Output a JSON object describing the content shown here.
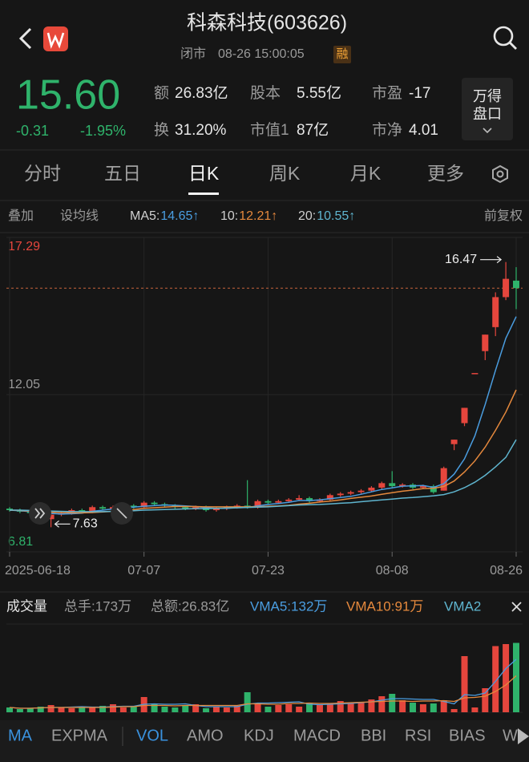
{
  "header": {
    "title": "科森科技(603626)",
    "status": "闭市",
    "time": "08-26 15:00:05",
    "badge": "融"
  },
  "quote": {
    "price": "15.60",
    "change": "-0.31",
    "change_pct": "-1.95%",
    "stats": [
      {
        "label": "额",
        "value": "26.83亿"
      },
      {
        "label": "股本",
        "value": "5.55亿"
      },
      {
        "label": "市盈",
        "value": "-17"
      },
      {
        "label": "换",
        "value": "31.20%"
      },
      {
        "label": "市值1",
        "value": "87亿"
      },
      {
        "label": "市净",
        "value": "4.01"
      }
    ],
    "button": [
      "万得",
      "盘口"
    ]
  },
  "tabs": [
    "分时",
    "五日",
    "日K",
    "周K",
    "月K",
    "更多"
  ],
  "toolbar": {
    "overlay": "叠加",
    "ma_setting": "设均线",
    "adjust": "前复权"
  },
  "chart_data": [
    {
      "type": "candlestick",
      "categories": [
        "2025-06-18",
        null,
        null,
        null,
        null,
        null,
        null,
        null,
        null,
        null,
        null,
        null,
        null,
        "07-07",
        null,
        null,
        null,
        null,
        null,
        null,
        null,
        null,
        null,
        null,
        null,
        "07-23",
        null,
        null,
        null,
        null,
        null,
        null,
        null,
        null,
        null,
        null,
        null,
        "08-08",
        null,
        null,
        null,
        null,
        null,
        null,
        null,
        null,
        null,
        null,
        null,
        "08-26"
      ],
      "open": [
        8.25,
        8.2,
        8.15,
        8.1,
        7.9,
        8.05,
        8.1,
        8.2,
        8.15,
        8.3,
        8.25,
        8.3,
        8.35,
        8.3,
        8.45,
        8.4,
        8.35,
        8.3,
        8.25,
        8.3,
        8.2,
        8.25,
        8.3,
        8.35,
        8.3,
        8.5,
        8.45,
        8.5,
        8.55,
        8.6,
        8.5,
        8.55,
        8.7,
        8.75,
        8.8,
        8.85,
        8.95,
        9.1,
        9.0,
        9.05,
        8.95,
        9.0,
        8.85,
        10.4,
        11.1,
        12.77,
        13.5,
        14.3,
        15.3,
        15.85
      ],
      "high": [
        8.3,
        8.25,
        8.2,
        8.15,
        8.1,
        8.15,
        8.25,
        8.25,
        8.35,
        8.35,
        8.35,
        8.4,
        8.4,
        8.5,
        8.5,
        8.45,
        8.4,
        8.35,
        8.35,
        8.35,
        8.3,
        8.35,
        8.4,
        9.2,
        8.55,
        8.55,
        8.55,
        8.6,
        8.7,
        8.65,
        8.6,
        8.75,
        8.8,
        8.85,
        8.9,
        9.0,
        9.15,
        9.5,
        9.1,
        9.1,
        9.05,
        9.05,
        9.65,
        10.55,
        11.61,
        12.77,
        14.05,
        15.46,
        16.47,
        16.3
      ],
      "low": [
        8.15,
        8.1,
        8.05,
        7.9,
        7.63,
        8.0,
        8.05,
        8.1,
        8.1,
        8.2,
        8.2,
        8.25,
        8.25,
        8.25,
        8.35,
        8.3,
        8.25,
        8.2,
        8.2,
        8.15,
        8.15,
        8.2,
        8.25,
        8.25,
        8.25,
        8.4,
        8.4,
        8.45,
        8.5,
        8.45,
        8.45,
        8.5,
        8.65,
        8.7,
        8.75,
        8.8,
        8.9,
        8.95,
        8.95,
        8.9,
        8.9,
        8.75,
        8.85,
        10.2,
        11.0,
        12.77,
        13.2,
        14.0,
        15.2,
        14.9
      ],
      "close": [
        8.2,
        8.15,
        8.1,
        7.95,
        8.05,
        8.1,
        8.2,
        8.15,
        8.3,
        8.25,
        8.3,
        8.35,
        8.3,
        8.45,
        8.4,
        8.35,
        8.3,
        8.25,
        8.3,
        8.2,
        8.25,
        8.3,
        8.35,
        8.3,
        8.5,
        8.45,
        8.5,
        8.55,
        8.6,
        8.5,
        8.55,
        8.7,
        8.75,
        8.8,
        8.85,
        8.95,
        9.1,
        9.0,
        9.05,
        8.95,
        9.0,
        8.8,
        9.6,
        10.55,
        11.61,
        12.77,
        14.05,
        15.3,
        15.91,
        15.6
      ],
      "series": [
        {
          "name": "MA5:",
          "label": "14.65↑",
          "color": "#4a9de0",
          "values": [
            8.2,
            8.18,
            8.15,
            8.12,
            8.09,
            8.07,
            8.08,
            8.1,
            8.16,
            8.2,
            8.24,
            8.27,
            8.3,
            8.33,
            8.35,
            8.37,
            8.36,
            8.34,
            8.32,
            8.28,
            8.26,
            8.26,
            8.28,
            8.29,
            8.34,
            8.39,
            8.42,
            8.46,
            8.52,
            8.52,
            8.54,
            8.58,
            8.62,
            8.66,
            8.73,
            8.81,
            8.89,
            8.94,
            9.0,
            9.01,
            9.02,
            8.96,
            9.08,
            9.4,
            9.91,
            10.67,
            11.72,
            12.86,
            13.93,
            14.65
          ]
        },
        {
          "name": "10:",
          "label": "12.21↑",
          "color": "#e5893d",
          "values": [
            8.2,
            8.19,
            8.17,
            8.15,
            8.13,
            8.12,
            8.11,
            8.11,
            8.12,
            8.14,
            8.16,
            8.18,
            8.22,
            8.26,
            8.28,
            8.3,
            8.32,
            8.32,
            8.32,
            8.31,
            8.31,
            8.31,
            8.31,
            8.31,
            8.31,
            8.33,
            8.34,
            8.36,
            8.4,
            8.43,
            8.47,
            8.5,
            8.54,
            8.59,
            8.63,
            8.67,
            8.73,
            8.78,
            8.83,
            8.87,
            8.92,
            8.93,
            8.99,
            9.17,
            9.47,
            9.84,
            10.3,
            10.86,
            11.47,
            12.21
          ]
        },
        {
          "name": "20:",
          "label": "10.55↑",
          "color": "#5fb5cf",
          "values": [
            8.2,
            8.2,
            8.19,
            8.18,
            8.17,
            8.16,
            8.15,
            8.15,
            8.15,
            8.15,
            8.16,
            8.17,
            8.18,
            8.2,
            8.21,
            8.22,
            8.23,
            8.24,
            8.25,
            8.25,
            8.26,
            8.27,
            8.28,
            8.29,
            8.3,
            8.31,
            8.33,
            8.35,
            8.37,
            8.38,
            8.39,
            8.41,
            8.43,
            8.45,
            8.48,
            8.51,
            8.54,
            8.57,
            8.6,
            8.62,
            8.65,
            8.68,
            8.72,
            8.81,
            8.95,
            9.13,
            9.36,
            9.64,
            9.96,
            10.55
          ]
        }
      ],
      "ylim": [
        6.81,
        17.29
      ],
      "yticks": [
        17.29,
        12.05,
        6.81
      ],
      "grid": true,
      "up_color": "#e5463d",
      "down_color": "#2fb36b",
      "high_label": "16.47",
      "low_label": "7.63"
    },
    {
      "type": "bar",
      "title": "成交量",
      "stats": [
        "总手:173万",
        "总额:26.83亿"
      ],
      "values": [
        12,
        8,
        10,
        14,
        18,
        12,
        10,
        14,
        12,
        16,
        20,
        12,
        14,
        38,
        22,
        14,
        12,
        16,
        20,
        10,
        14,
        12,
        16,
        50,
        22,
        14,
        18,
        20,
        14,
        24,
        18,
        22,
        28,
        24,
        26,
        32,
        40,
        46,
        30,
        24,
        20,
        22,
        30,
        8,
        140,
        12,
        60,
        165,
        170,
        173
      ],
      "series": [
        {
          "name": "VMA5:",
          "label": "132万",
          "color": "#4a9de0",
          "values": [
            12,
            10,
            10,
            11,
            12,
            12,
            13,
            14,
            13,
            13,
            14,
            15,
            15,
            20,
            21,
            20,
            20,
            21,
            17,
            14,
            14,
            14,
            14,
            20,
            23,
            23,
            24,
            25,
            26,
            20,
            19,
            20,
            21,
            22,
            24,
            26,
            30,
            34,
            34,
            33,
            32,
            32,
            27,
            21,
            44,
            42,
            48,
            77,
            109,
            132
          ]
        },
        {
          "name": "VMA10:",
          "label": "91万",
          "color": "#e5893d",
          "values": [
            12,
            10,
            10,
            11,
            12,
            12,
            12,
            12,
            12,
            12,
            13,
            14,
            14,
            17,
            17,
            17,
            16,
            17,
            17,
            17,
            17,
            17,
            17,
            21,
            21,
            20,
            20,
            22,
            22,
            23,
            22,
            22,
            23,
            24,
            25,
            26,
            27,
            28,
            28,
            27,
            28,
            28,
            29,
            27,
            36,
            37,
            40,
            52,
            68,
            91
          ]
        }
      ],
      "legend_overflow": "VMA2",
      "ylim": [
        0,
        220
      ]
    }
  ],
  "indicators": [
    "MA",
    "EXPMA",
    "VOL",
    "AMO",
    "KDJ",
    "MACD",
    "BBI",
    "RSI",
    "BIAS",
    "W"
  ]
}
